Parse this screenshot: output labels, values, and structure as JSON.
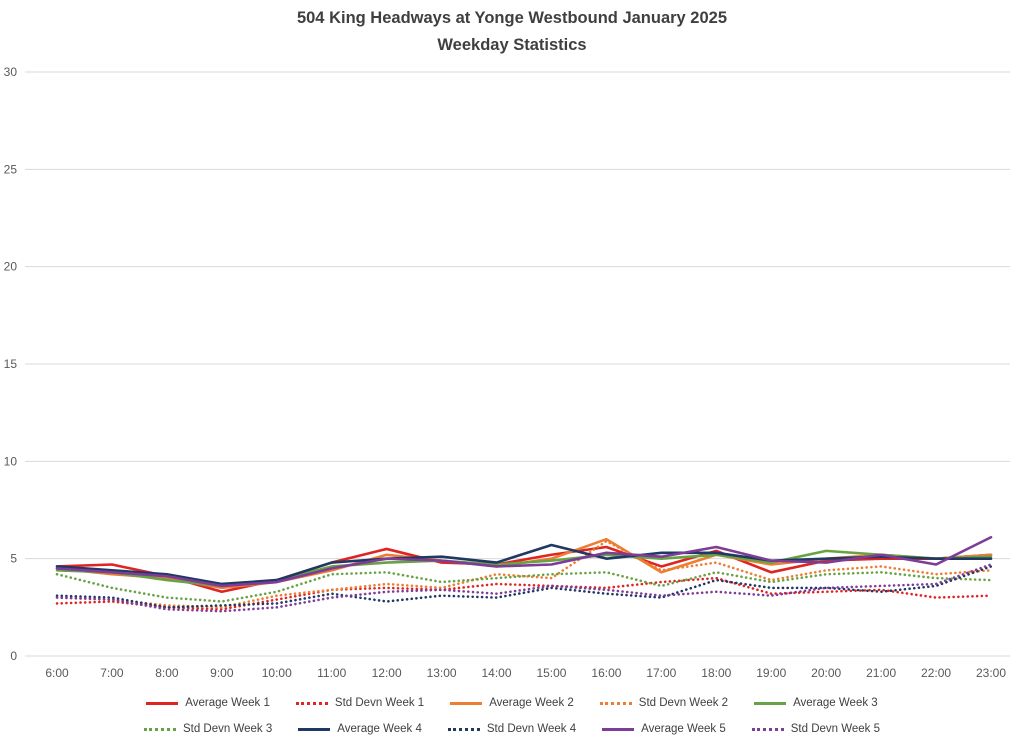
{
  "chart_data": {
    "type": "line",
    "title": "504 King Headways at Yonge Westbound January 2025",
    "subtitle": "Weekday Statistics",
    "xlabel": "",
    "ylabel": "",
    "ylim": [
      0,
      30
    ],
    "yticks": [
      0,
      5,
      10,
      15,
      20,
      25,
      30
    ],
    "grid": true,
    "legend_position": "bottom",
    "gridline_color": "#d9d9d9",
    "x": [
      "6:00",
      "7:00",
      "8:00",
      "9:00",
      "10:00",
      "11:00",
      "12:00",
      "13:00",
      "14:00",
      "15:00",
      "16:00",
      "17:00",
      "18:00",
      "19:00",
      "20:00",
      "21:00",
      "22:00",
      "23:00"
    ],
    "series": [
      {
        "name": "Average Week 1",
        "color": "#e02421",
        "style": "solid",
        "values": [
          4.6,
          4.7,
          4.1,
          3.3,
          3.9,
          4.8,
          5.5,
          4.8,
          4.7,
          5.2,
          5.6,
          4.6,
          5.4,
          4.3,
          4.9,
          5.0,
          5.0,
          5.2
        ]
      },
      {
        "name": "Std Devn Week 1",
        "color": "#e02421",
        "style": "dotted",
        "values": [
          2.7,
          2.8,
          2.5,
          2.4,
          2.9,
          3.4,
          3.5,
          3.4,
          3.7,
          3.6,
          3.5,
          3.8,
          4.0,
          3.2,
          3.3,
          3.4,
          3.0,
          3.1
        ]
      },
      {
        "name": "Average Week 2",
        "color": "#ed7d31",
        "style": "solid",
        "values": [
          4.5,
          4.2,
          4.0,
          3.5,
          3.8,
          4.4,
          5.2,
          4.9,
          4.6,
          5.0,
          6.0,
          4.3,
          5.2,
          4.7,
          5.0,
          5.2,
          5.0,
          5.2
        ]
      },
      {
        "name": "Std Devn Week 2",
        "color": "#ed7d31",
        "style": "dotted",
        "values": [
          3.0,
          2.9,
          2.6,
          2.5,
          3.1,
          3.4,
          3.7,
          3.5,
          4.2,
          4.0,
          5.9,
          4.4,
          4.8,
          3.9,
          4.4,
          4.6,
          4.2,
          4.4
        ]
      },
      {
        "name": "Average Week 3",
        "color": "#67a344",
        "style": "solid",
        "values": [
          4.4,
          4.3,
          3.9,
          3.6,
          3.9,
          4.6,
          4.8,
          4.9,
          4.7,
          4.9,
          5.2,
          5.0,
          5.2,
          4.8,
          5.4,
          5.2,
          5.0,
          5.1
        ]
      },
      {
        "name": "Std Devn Week 3",
        "color": "#67a344",
        "style": "dotted",
        "values": [
          4.2,
          3.5,
          3.0,
          2.8,
          3.3,
          4.2,
          4.3,
          3.8,
          4.0,
          4.2,
          4.3,
          3.6,
          4.3,
          3.8,
          4.2,
          4.3,
          4.0,
          3.9
        ]
      },
      {
        "name": "Average Week 4",
        "color": "#1f3864",
        "style": "solid",
        "values": [
          4.6,
          4.4,
          4.2,
          3.7,
          3.9,
          4.8,
          5.0,
          5.1,
          4.8,
          5.7,
          5.0,
          5.3,
          5.3,
          4.9,
          5.0,
          5.1,
          5.0,
          5.0
        ]
      },
      {
        "name": "Std Devn Week 4",
        "color": "#1f3864",
        "style": "dotted",
        "values": [
          3.1,
          3.0,
          2.5,
          2.6,
          2.7,
          3.2,
          2.8,
          3.1,
          3.0,
          3.5,
          3.2,
          3.0,
          3.9,
          3.5,
          3.5,
          3.3,
          3.6,
          4.6
        ]
      },
      {
        "name": "Average Week 5",
        "color": "#7d3c98",
        "style": "solid",
        "values": [
          4.5,
          4.3,
          4.1,
          3.6,
          3.8,
          4.5,
          5.0,
          4.9,
          4.6,
          4.7,
          5.3,
          5.1,
          5.6,
          4.9,
          4.8,
          5.2,
          4.7,
          6.1
        ]
      },
      {
        "name": "Std Devn Week 5",
        "color": "#7d3c98",
        "style": "dotted",
        "values": [
          3.0,
          2.9,
          2.4,
          2.3,
          2.5,
          3.0,
          3.3,
          3.4,
          3.2,
          3.6,
          3.4,
          3.1,
          3.3,
          3.1,
          3.5,
          3.6,
          3.7,
          4.7
        ]
      }
    ]
  }
}
